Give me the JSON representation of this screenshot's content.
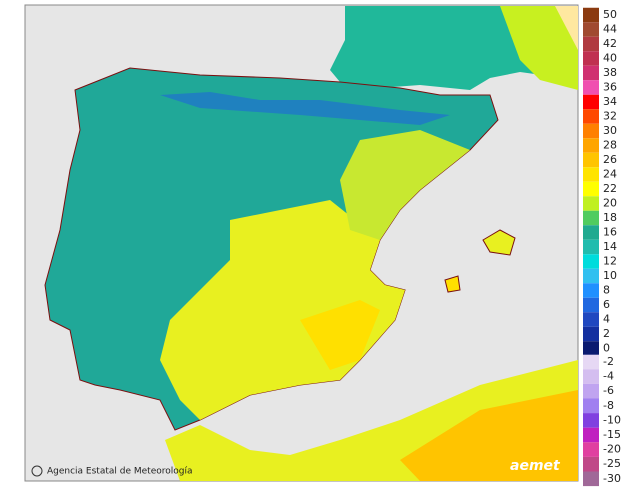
{
  "credit": "Agencia Estatal de Meteorología",
  "logo": "aemet",
  "legend": {
    "upper": [
      {
        "value": 50,
        "color": "#8b3a10"
      },
      {
        "value": 44,
        "color": "#a04a30"
      },
      {
        "value": 42,
        "color": "#b03a40"
      },
      {
        "value": 40,
        "color": "#c03050"
      },
      {
        "value": 38,
        "color": "#d03070"
      },
      {
        "value": 36,
        "color": "#f050b0"
      },
      {
        "value": 34,
        "color": "#ff0000"
      },
      {
        "value": 32,
        "color": "#ff4800"
      },
      {
        "value": 30,
        "color": "#ff8000"
      },
      {
        "value": 28,
        "color": "#ffa500"
      },
      {
        "value": 26,
        "color": "#ffc400"
      },
      {
        "value": 24,
        "color": "#ffe400"
      },
      {
        "value": 22,
        "color": "#ffff00"
      },
      {
        "value": 20,
        "color": "#c0f020"
      },
      {
        "value": 18,
        "color": "#50cc60"
      },
      {
        "value": 16,
        "color": "#20aa90"
      },
      {
        "value": 14,
        "color": "#20bcae"
      },
      {
        "value": 12,
        "color": "#00dcdc"
      },
      {
        "value": 10,
        "color": "#30c0f0"
      },
      {
        "value": 8,
        "color": "#2090ff"
      },
      {
        "value": 6,
        "color": "#2068e0"
      },
      {
        "value": 4,
        "color": "#2048c0"
      },
      {
        "value": 2,
        "color": "#1430a0"
      },
      {
        "value": 0,
        "color": "#0a1a70"
      }
    ],
    "lower": [
      {
        "value": -2,
        "color": "#e6d8f4"
      },
      {
        "value": -4,
        "color": "#d4bef0"
      },
      {
        "value": -6,
        "color": "#c0a4f0"
      },
      {
        "value": -8,
        "color": "#a080f0"
      },
      {
        "value": -10,
        "color": "#8040e0"
      },
      {
        "value": -15,
        "color": "#c020c0"
      },
      {
        "value": -20,
        "color": "#e040a0"
      },
      {
        "value": -25,
        "color": "#c04888"
      },
      {
        "value": -30,
        "color": "#a06898"
      }
    ]
  }
}
